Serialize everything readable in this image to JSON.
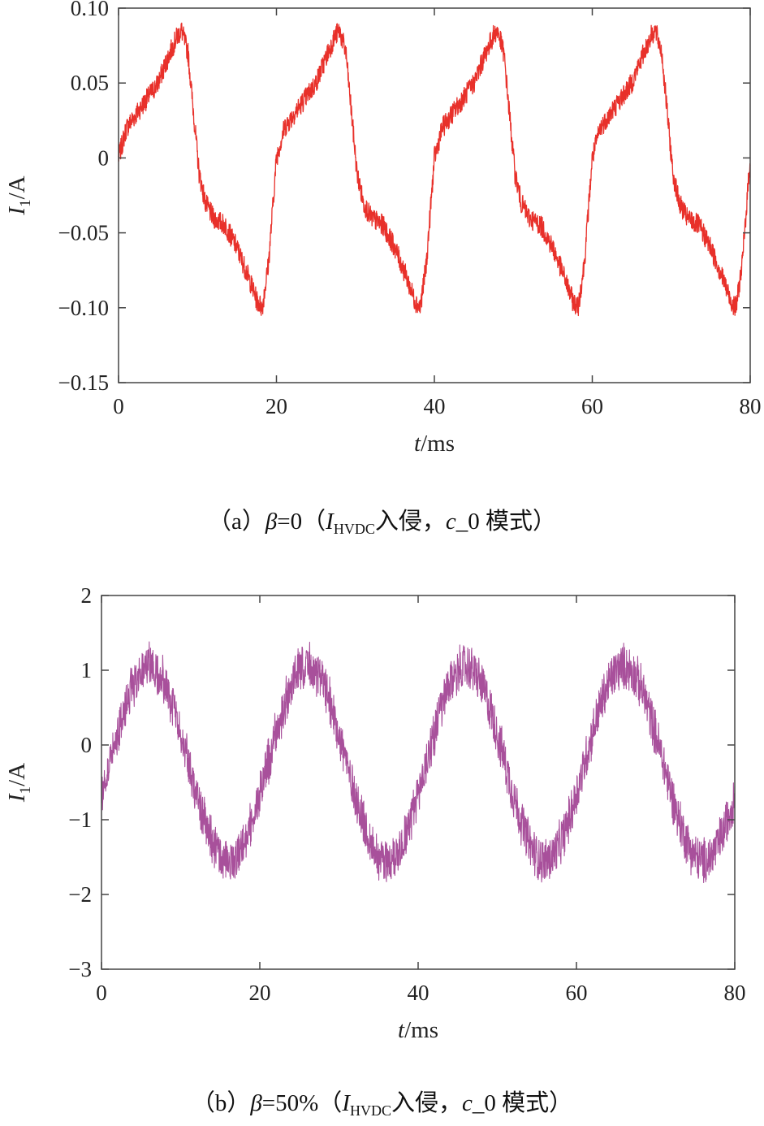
{
  "chart_data": [
    {
      "type": "line",
      "panel": "a",
      "caption": {
        "open": "（a）",
        "beta_symbol": "β",
        "beta_value": "=0",
        "paren_open": "（",
        "current_symbol": "I",
        "current_sub": "HVDC",
        "intrusion": "入侵，",
        "mode_symbol": "c",
        "mode_suffix": "_0 模式",
        "paren_close": "）"
      },
      "xlabel": {
        "symbol": "t",
        "unit": "/ms"
      },
      "ylabel": {
        "symbol": "I",
        "sub": "1",
        "unit": "/A"
      },
      "xlim": [
        0,
        80
      ],
      "ylim": [
        -0.15,
        0.1
      ],
      "xticks": [
        0,
        20,
        40,
        60,
        80
      ],
      "xtick_labels": [
        "0",
        "20",
        "40",
        "60",
        "80"
      ],
      "yticks": [
        0.1,
        0.05,
        0,
        -0.05,
        -0.1,
        -0.15
      ],
      "ytick_labels": [
        "0.10",
        "0.05",
        "0",
        "−0.05",
        "−0.10",
        "−0.15"
      ],
      "series": [
        {
          "name": "I1",
          "color": "#e8302a",
          "period_ms": 20,
          "x": [
            0,
            1,
            3,
            5,
            6.5,
            7.5,
            8,
            8.8,
            9.5,
            10.2,
            11,
            12,
            13.5,
            15,
            16.5,
            17.5,
            18.2,
            19,
            19.5,
            20
          ],
          "y": [
            0.0,
            0.02,
            0.035,
            0.05,
            0.07,
            0.082,
            0.085,
            0.07,
            0.03,
            -0.01,
            -0.03,
            -0.04,
            -0.045,
            -0.06,
            -0.08,
            -0.095,
            -0.1,
            -0.07,
            -0.035,
            0.0
          ],
          "noise_amplitude": 0.007
        }
      ]
    },
    {
      "type": "line",
      "panel": "b",
      "caption": {
        "open": "（b）",
        "beta_symbol": "β",
        "beta_value": "=50%",
        "paren_open": "（",
        "current_symbol": "I",
        "current_sub": "HVDC",
        "intrusion": "入侵，",
        "mode_symbol": "c",
        "mode_suffix": "_0 模式",
        "paren_close": "）"
      },
      "xlabel": {
        "symbol": "t",
        "unit": "/ms"
      },
      "ylabel": {
        "symbol": "I",
        "sub": "1",
        "unit": "/A"
      },
      "xlim": [
        0,
        80
      ],
      "ylim": [
        -3,
        2
      ],
      "xticks": [
        0,
        20,
        40,
        60,
        80
      ],
      "xtick_labels": [
        "0",
        "20",
        "40",
        "60",
        "80"
      ],
      "yticks": [
        2,
        1,
        0,
        -1,
        -2,
        -3
      ],
      "ytick_labels": [
        "2",
        "1",
        "0",
        "−1",
        "−2",
        "−3"
      ],
      "series": [
        {
          "name": "I1",
          "color": "#a8509b",
          "period_ms": 20,
          "mean": -0.25,
          "amplitude": 1.3,
          "peak_time_ms": 6,
          "noise_amplitude": 0.35
        }
      ]
    }
  ]
}
